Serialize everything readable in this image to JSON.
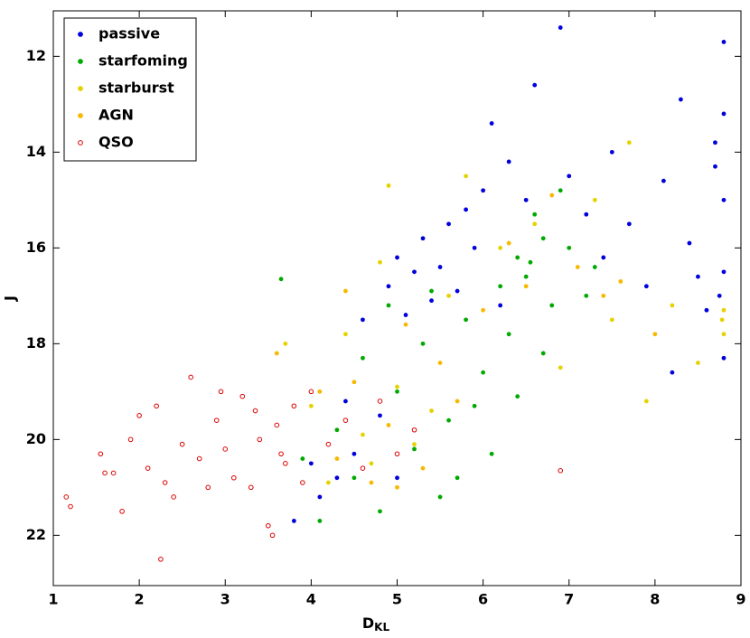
{
  "chart_data": {
    "type": "scatter",
    "xlabel": "D",
    "xlabel_subscript": "KL",
    "ylabel": "J",
    "xlim": [
      1,
      9
    ],
    "ylim": [
      23.05,
      11.05
    ],
    "y_inverted": true,
    "xticks": [
      1,
      2,
      3,
      4,
      5,
      6,
      7,
      8,
      9
    ],
    "yticks": [
      12,
      14,
      16,
      18,
      20,
      22
    ],
    "legend": "upper left",
    "series": [
      {
        "name": "passive",
        "color": "#0000dd",
        "marker": "filled",
        "x": [
          3.8,
          4.1,
          4.3,
          4.5,
          4.8,
          4.6,
          4.9,
          5.0,
          5.2,
          5.3,
          5.5,
          5.6,
          5.7,
          5.8,
          5.4,
          5.1,
          6.0,
          6.1,
          6.3,
          6.5,
          6.6,
          6.9,
          7.0,
          7.2,
          7.4,
          7.5,
          7.7,
          7.9,
          8.1,
          8.2,
          8.3,
          8.4,
          8.5,
          8.6,
          8.7,
          8.8,
          8.8,
          8.8,
          8.8,
          8.8,
          8.75,
          8.7,
          5.9,
          6.2,
          4.4,
          5.0,
          4.0
        ],
        "values": [
          21.7,
          21.2,
          20.8,
          20.3,
          19.5,
          17.5,
          16.8,
          16.2,
          16.5,
          15.8,
          16.4,
          15.5,
          16.9,
          15.2,
          17.1,
          17.4,
          14.8,
          13.4,
          14.2,
          15.0,
          12.6,
          11.4,
          14.5,
          15.3,
          16.2,
          14.0,
          15.5,
          16.8,
          14.6,
          18.6,
          12.9,
          15.9,
          16.6,
          17.3,
          14.3,
          11.7,
          13.2,
          15.0,
          16.5,
          18.3,
          17.0,
          13.8,
          16.0,
          17.2,
          19.2,
          20.8,
          20.5
        ]
      },
      {
        "name": "starfoming",
        "color": "#00aa00",
        "marker": "filled",
        "x": [
          3.65,
          3.9,
          4.1,
          4.3,
          4.5,
          4.6,
          4.8,
          5.0,
          5.2,
          5.3,
          5.5,
          5.6,
          5.8,
          5.9,
          6.0,
          6.1,
          6.2,
          6.3,
          6.4,
          6.5,
          6.6,
          6.7,
          6.8,
          6.9,
          7.0,
          7.2,
          7.3,
          6.4,
          5.7,
          4.9,
          5.4,
          6.55,
          6.7
        ],
        "values": [
          16.65,
          20.4,
          21.7,
          19.8,
          20.8,
          18.3,
          21.5,
          19.0,
          20.2,
          18.0,
          21.2,
          19.6,
          17.5,
          19.3,
          18.6,
          20.3,
          16.8,
          17.8,
          16.2,
          16.6,
          15.3,
          15.8,
          17.2,
          14.8,
          16.0,
          17.0,
          16.4,
          19.1,
          20.8,
          17.2,
          16.9,
          16.3,
          18.2
        ]
      },
      {
        "name": "starburst",
        "color": "#e6d200",
        "marker": "filled",
        "x": [
          3.7,
          4.0,
          4.2,
          4.4,
          4.6,
          4.7,
          4.8,
          4.9,
          5.0,
          5.2,
          5.4,
          5.6,
          5.8,
          6.2,
          6.6,
          7.3,
          7.5,
          7.9,
          8.2,
          8.5,
          8.8,
          8.8,
          8.78,
          7.7,
          6.9
        ],
        "values": [
          18.0,
          19.3,
          20.9,
          17.8,
          19.9,
          20.5,
          16.3,
          14.7,
          18.9,
          20.1,
          19.4,
          17.0,
          14.5,
          16.0,
          15.5,
          15.0,
          17.5,
          19.2,
          17.2,
          18.4,
          17.3,
          17.8,
          17.5,
          13.8,
          18.5
        ]
      },
      {
        "name": "AGN",
        "color": "#f7b900",
        "marker": "filled",
        "x": [
          3.6,
          4.1,
          4.3,
          4.5,
          4.7,
          4.9,
          5.1,
          5.3,
          5.5,
          5.7,
          6.0,
          6.3,
          6.5,
          6.8,
          7.1,
          7.4,
          7.6,
          8.0,
          4.4,
          5.0
        ],
        "values": [
          18.2,
          19.0,
          20.4,
          18.8,
          20.9,
          19.7,
          17.6,
          20.6,
          18.4,
          19.2,
          17.3,
          15.9,
          16.8,
          14.9,
          16.4,
          17.0,
          16.7,
          17.8,
          16.9,
          21.0
        ]
      },
      {
        "name": "QSO",
        "color": "#dd0000",
        "marker": "open",
        "x": [
          1.15,
          1.2,
          1.55,
          1.6,
          1.7,
          1.8,
          1.9,
          2.0,
          2.1,
          2.2,
          2.25,
          2.3,
          2.4,
          2.5,
          2.6,
          2.7,
          2.8,
          2.9,
          3.0,
          3.1,
          3.2,
          3.3,
          3.4,
          3.5,
          3.55,
          3.6,
          3.7,
          3.8,
          3.9,
          4.0,
          4.2,
          4.4,
          4.6,
          4.8,
          5.0,
          5.2,
          6.9,
          3.35,
          2.95,
          3.65
        ],
        "values": [
          21.2,
          21.4,
          20.3,
          20.7,
          20.7,
          21.5,
          20.0,
          19.5,
          20.6,
          19.3,
          22.5,
          20.9,
          21.2,
          20.1,
          18.7,
          20.4,
          21.0,
          19.6,
          20.2,
          20.8,
          19.1,
          21.0,
          20.0,
          21.8,
          22.0,
          19.7,
          20.5,
          19.3,
          20.9,
          19.0,
          20.1,
          19.6,
          20.6,
          19.2,
          20.3,
          19.8,
          20.65,
          19.4,
          19.0,
          20.3
        ]
      }
    ]
  }
}
